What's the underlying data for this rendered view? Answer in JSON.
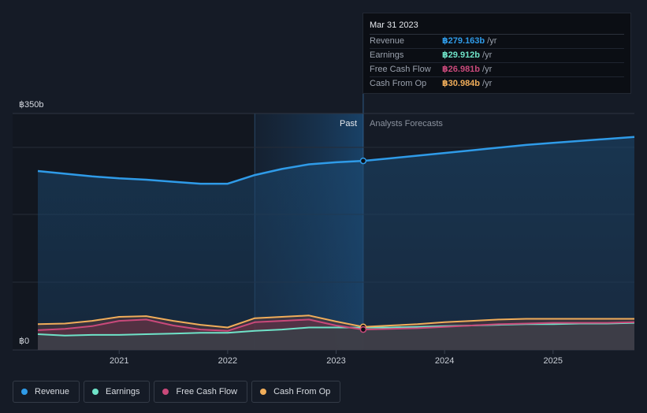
{
  "colors": {
    "revenue": "#2f9be8",
    "earnings": "#6fe3c8",
    "free_cash_flow": "#c9497a",
    "cash_from_op": "#f0ad5a"
  },
  "sections": {
    "past": "Past",
    "forecast": "Analysts Forecasts"
  },
  "tooltip": {
    "date": "Mar 31 2023",
    "rows": [
      {
        "name": "Revenue",
        "value": "฿279.163b",
        "unit": "/yr",
        "key": "revenue"
      },
      {
        "name": "Earnings",
        "value": "฿29.912b",
        "unit": "/yr",
        "key": "earnings"
      },
      {
        "name": "Free Cash Flow",
        "value": "฿26.981b",
        "unit": "/yr",
        "key": "free_cash_flow"
      },
      {
        "name": "Cash From Op",
        "value": "฿30.984b",
        "unit": "/yr",
        "key": "cash_from_op"
      }
    ]
  },
  "legend": [
    {
      "label": "Revenue",
      "key": "revenue"
    },
    {
      "label": "Earnings",
      "key": "earnings"
    },
    {
      "label": "Free Cash Flow",
      "key": "free_cash_flow"
    },
    {
      "label": "Cash From Op",
      "key": "cash_from_op"
    }
  ],
  "chart_data": {
    "type": "area",
    "ylim": [
      0,
      350
    ],
    "y_tick_labels": [
      "฿350b",
      "฿0"
    ],
    "x_ticks": [
      2021,
      2022,
      2023,
      2024,
      2025
    ],
    "xlim": [
      2020.25,
      2025.75
    ],
    "past_end": 2023.25,
    "highlight_start": 2022.25,
    "series": [
      {
        "name": "Revenue",
        "key": "revenue",
        "x": [
          2020.25,
          2020.5,
          2020.75,
          2021.0,
          2021.25,
          2021.5,
          2021.75,
          2022.0,
          2022.25,
          2022.5,
          2022.75,
          2023.0,
          2023.25,
          2023.5,
          2023.75,
          2024.0,
          2024.25,
          2024.5,
          2024.75,
          2025.0,
          2025.25,
          2025.5,
          2025.75
        ],
        "y": [
          264,
          260,
          256,
          253,
          251,
          248,
          245,
          245,
          258,
          267,
          274,
          277,
          279.2,
          283,
          287,
          291,
          295,
          299,
          303,
          306,
          309,
          312,
          315
        ]
      },
      {
        "name": "Earnings",
        "key": "earnings",
        "x": [
          2020.25,
          2020.5,
          2020.75,
          2021.0,
          2021.25,
          2021.5,
          2021.75,
          2022.0,
          2022.25,
          2022.5,
          2022.75,
          2023.0,
          2023.25,
          2023.5,
          2023.75,
          2024.0,
          2024.25,
          2024.5,
          2024.75,
          2025.0,
          2025.25,
          2025.5,
          2025.75
        ],
        "y": [
          20,
          18,
          19,
          19,
          20,
          21,
          22,
          22,
          25,
          27,
          30,
          30,
          29.9,
          30,
          31,
          32,
          33,
          34,
          35,
          35,
          36,
          36,
          37
        ]
      },
      {
        "name": "Free Cash Flow",
        "key": "free_cash_flow",
        "x": [
          2020.25,
          2020.5,
          2020.75,
          2021.0,
          2021.25,
          2021.5,
          2021.75,
          2022.0,
          2022.25,
          2022.5,
          2022.75,
          2023.0,
          2023.25,
          2023.5,
          2023.75,
          2024.0,
          2024.25,
          2024.5,
          2024.75,
          2025.0,
          2025.25,
          2025.5,
          2025.75
        ],
        "y": [
          26,
          28,
          32,
          40,
          42,
          33,
          27,
          25,
          38,
          40,
          42,
          33,
          27,
          28,
          29,
          31,
          33,
          35,
          36,
          37,
          37,
          37,
          38
        ]
      },
      {
        "name": "Cash From Op",
        "key": "cash_from_op",
        "x": [
          2020.25,
          2020.5,
          2020.75,
          2021.0,
          2021.25,
          2021.5,
          2021.75,
          2022.0,
          2022.25,
          2022.5,
          2022.75,
          2023.0,
          2023.25,
          2023.5,
          2023.75,
          2024.0,
          2024.25,
          2024.5,
          2024.75,
          2025.0,
          2025.25,
          2025.5,
          2025.75
        ],
        "y": [
          35,
          36,
          40,
          46,
          47,
          40,
          34,
          30,
          44,
          46,
          48,
          39,
          31,
          33,
          35,
          38,
          40,
          42,
          43,
          43,
          43,
          43,
          43
        ]
      }
    ]
  }
}
